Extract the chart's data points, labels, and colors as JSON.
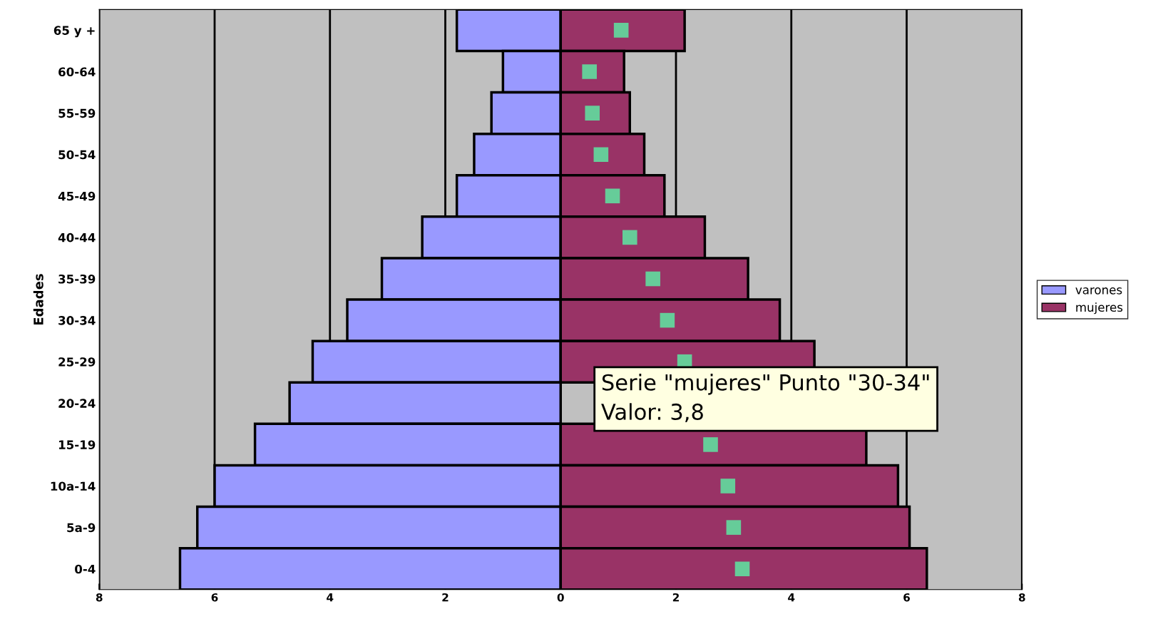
{
  "chart_data": {
    "type": "bar",
    "orientation": "horizontal",
    "ylabel": "Edades",
    "categories": [
      "65 y +",
      "60-64",
      "55-59",
      "50-54",
      "45-49",
      "40-44",
      "35-39",
      "30-34",
      "25-29",
      "20-24",
      "15-19",
      "10a-14",
      "5a-9",
      "0-4"
    ],
    "series": [
      {
        "name": "varones",
        "color": "#9999ff",
        "values": [
          -1.8,
          -1.0,
          -1.2,
          -1.5,
          -1.8,
          -2.4,
          -3.1,
          -3.7,
          -4.3,
          -4.7,
          -5.3,
          -6.0,
          -6.3,
          -6.6
        ]
      },
      {
        "name": "mujeres",
        "color": "#993366",
        "values": [
          2.15,
          1.1,
          1.2,
          1.45,
          1.8,
          2.5,
          3.25,
          3.8,
          4.4,
          null,
          5.3,
          5.85,
          6.05,
          6.35
        ]
      },
      {
        "type": "scatter",
        "color": "#66cc99",
        "marker": "square",
        "values": [
          1.05,
          0.5,
          0.55,
          0.7,
          0.9,
          1.2,
          1.6,
          1.85,
          2.15,
          null,
          2.6,
          2.9,
          3.0,
          3.15
        ]
      }
    ],
    "xlim": [
      -8,
      8
    ],
    "xticks": [
      {
        "value": -8,
        "label": "8"
      },
      {
        "value": -6,
        "label": "6"
      },
      {
        "value": -4,
        "label": "4"
      },
      {
        "value": -2,
        "label": "2"
      },
      0,
      2,
      4,
      6,
      8
    ],
    "stacked": true,
    "grid": "x",
    "legend": "right",
    "annotations": [
      "Serie \"mujeres\" Punto \"30-34\"\nValor: 3,8"
    ]
  }
}
